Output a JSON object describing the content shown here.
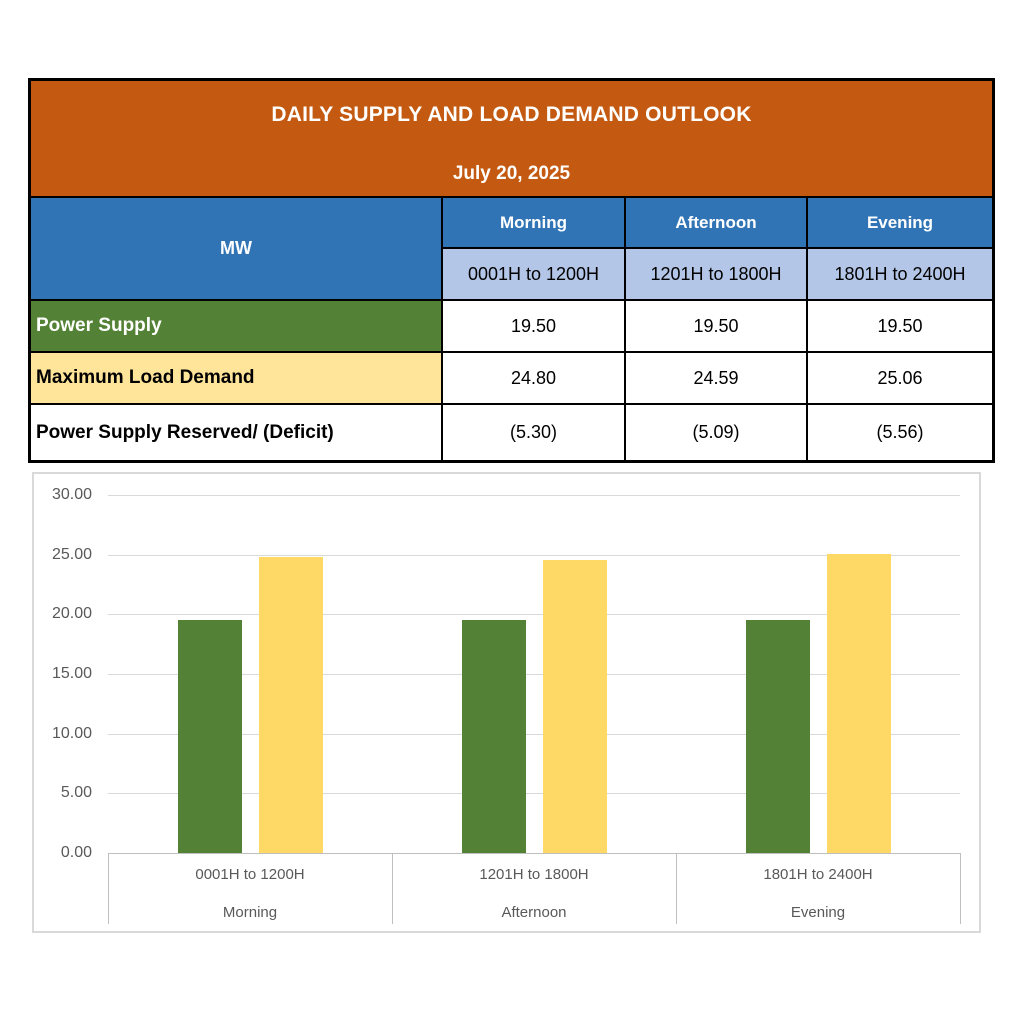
{
  "header": {
    "title": "DAILY SUPPLY AND LOAD DEMAND OUTLOOK",
    "date": "July 20, 2025"
  },
  "table": {
    "corner_label": "MW",
    "periods": [
      {
        "name": "Morning",
        "time": "0001H to 1200H"
      },
      {
        "name": "Afternoon",
        "time": "1201H to 1800H"
      },
      {
        "name": "Evening",
        "time": "1801H to 2400H"
      }
    ],
    "rows": [
      {
        "label": "Power Supply",
        "values": [
          "19.50",
          "19.50",
          "19.50"
        ]
      },
      {
        "label": "Maximum Load Demand",
        "values": [
          "24.80",
          "24.59",
          "25.06"
        ]
      },
      {
        "label": "Power Supply Reserved/ (Deficit)",
        "values": [
          "(5.30)",
          "(5.09)",
          "(5.56)"
        ]
      }
    ]
  },
  "chart_data": {
    "type": "bar",
    "categories": [
      "0001H to 1200H",
      "1201H to 1800H",
      "1801H to 2400H"
    ],
    "category_groups": [
      "Morning",
      "Afternoon",
      "Evening"
    ],
    "series": [
      {
        "name": "Power Supply",
        "color": "#538135",
        "values": [
          19.5,
          19.5,
          19.5
        ]
      },
      {
        "name": "Maximum Load Demand",
        "color": "#FFD966",
        "values": [
          24.8,
          24.59,
          25.06
        ]
      }
    ],
    "ylim": [
      0,
      30
    ],
    "ytick_step": 5,
    "ytick_labels": [
      "0.00",
      "5.00",
      "10.00",
      "15.00",
      "20.00",
      "25.00",
      "30.00"
    ],
    "grid": true,
    "legend": "none",
    "title": "",
    "xlabel": "",
    "ylabel": ""
  },
  "colors": {
    "header_orange": "#C45A11",
    "header_blue": "#3174B5",
    "subheader_blue": "#B4C6E7",
    "supply_green": "#538135",
    "demand_yellow": "#FFE599",
    "bar_green": "#538135",
    "bar_yellow": "#FFD966",
    "axis_text": "#595959",
    "gridline": "#D9D9D9"
  }
}
